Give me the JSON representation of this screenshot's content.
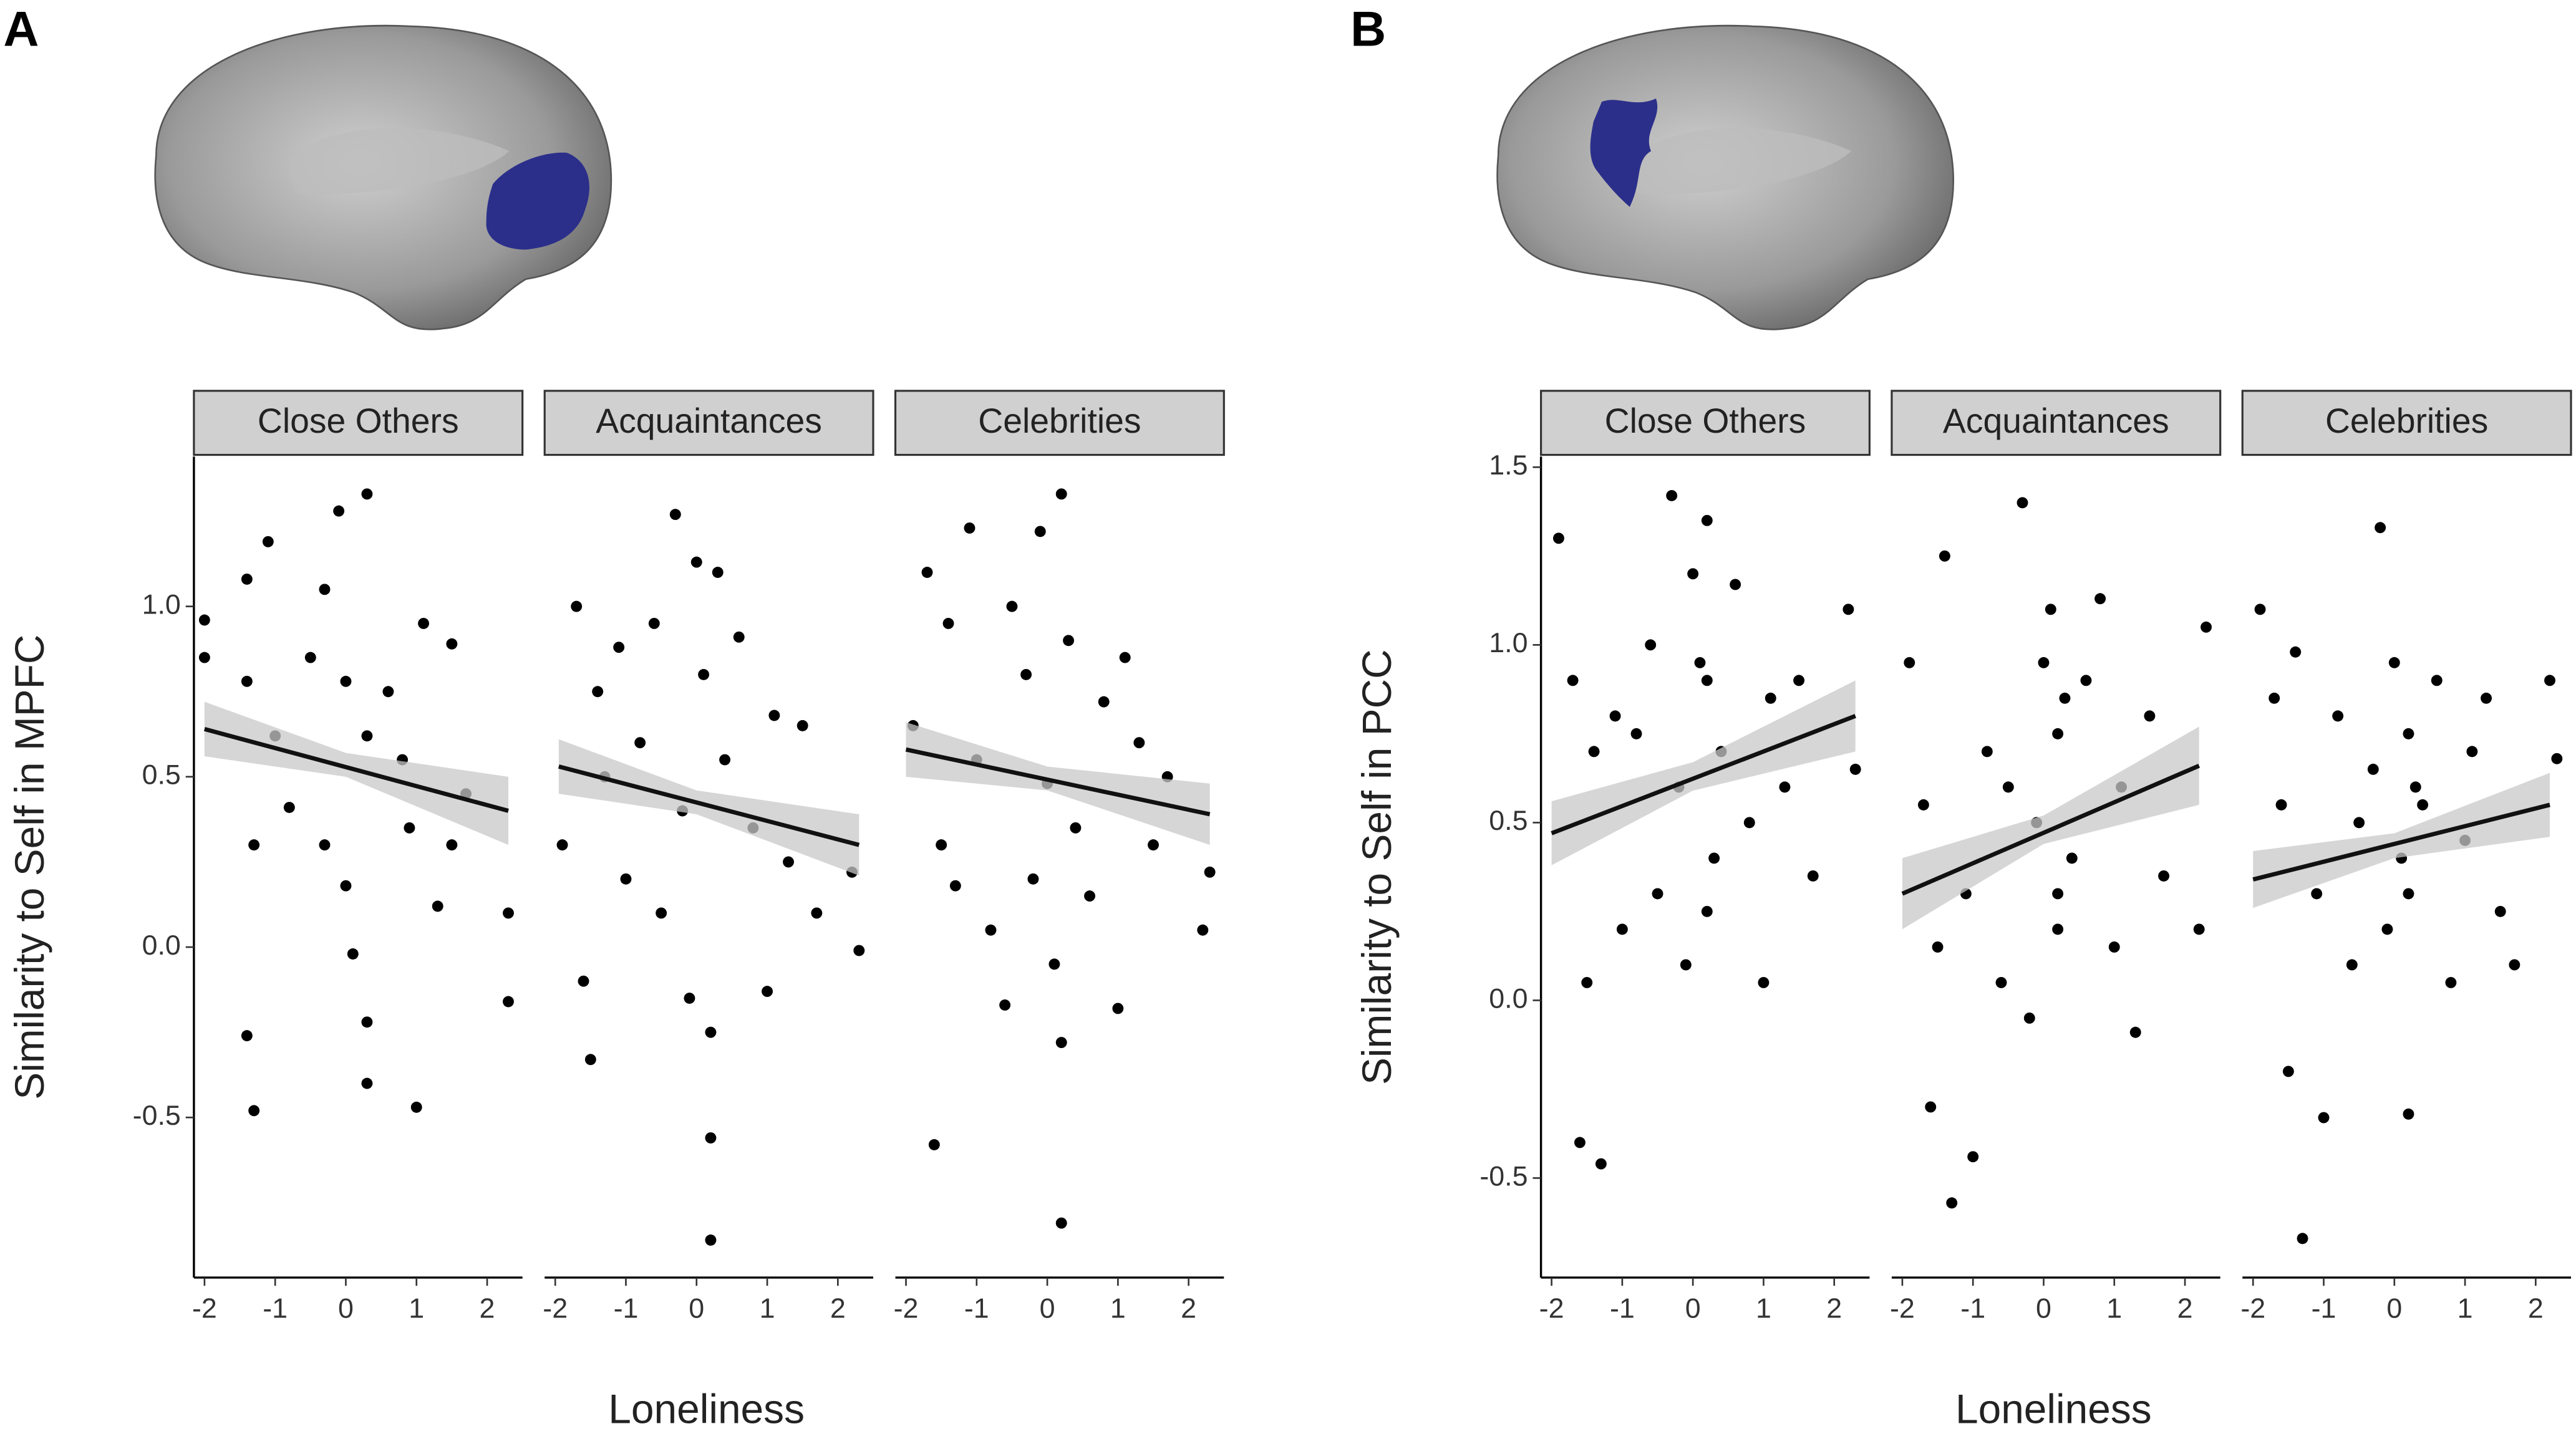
{
  "chart_data": [
    {
      "type": "scatter",
      "panel_label": "A",
      "ylabel": "Similarity to Self in MPFC",
      "xlabel": "Loneliness",
      "ylim": [
        -0.97,
        1.44
      ],
      "yticks": [
        {
          "value": -0.5,
          "label": "-0.5"
        },
        {
          "value": 0,
          "label": "0.0"
        },
        {
          "value": 0.5,
          "label": "0.5"
        },
        {
          "value": 1,
          "label": "1.0"
        }
      ],
      "xlim": [
        -2.15,
        2.5
      ],
      "xticks": [
        -2,
        -1,
        0,
        1,
        2
      ],
      "color": "#000000",
      "fit_color": "#111111",
      "band_color": "#c8c8c8",
      "facets": [
        {
          "name": "Close Others",
          "x": [
            -2,
            -2,
            -1.4,
            -1.4,
            -1.4,
            -1.3,
            -1.3,
            -1.1,
            -1,
            -0.8,
            -0.5,
            -0.3,
            -0.3,
            -0.1,
            0,
            0,
            0.1,
            0.3,
            0.3,
            0.3,
            0.3,
            0.6,
            0.8,
            0.9,
            1,
            1.1,
            1.3,
            1.5,
            1.5,
            1.7,
            2.3,
            2.3
          ],
          "y": [
            0.96,
            0.85,
            1.08,
            0.78,
            -0.26,
            0.3,
            -0.48,
            1.19,
            0.62,
            0.41,
            0.85,
            0.3,
            1.05,
            1.28,
            0.78,
            0.18,
            -0.02,
            1.33,
            0.62,
            -0.22,
            -0.4,
            0.75,
            0.55,
            0.35,
            -0.47,
            0.95,
            0.12,
            0.89,
            0.3,
            0.45,
            0.1,
            -0.16
          ],
          "fit_x": [
            -2,
            2.3
          ],
          "fit_y": [
            0.64,
            0.4
          ],
          "ci_x": [
            -2,
            0,
            2.3
          ],
          "ci_low": [
            0.56,
            0.5,
            0.3
          ],
          "ci_high": [
            0.72,
            0.57,
            0.5
          ]
        },
        {
          "name": "Acquaintances",
          "x": [
            -1.9,
            -1.7,
            -1.6,
            -1.5,
            -1.4,
            -1.3,
            -1.1,
            -1,
            -0.8,
            -0.6,
            -0.5,
            -0.3,
            -0.2,
            -0.1,
            0,
            0.1,
            0.2,
            0.2,
            0.2,
            0.3,
            0.4,
            0.6,
            0.8,
            1,
            1.1,
            1.3,
            1.5,
            1.7,
            2.2,
            2.3
          ],
          "y": [
            0.3,
            1.0,
            -0.1,
            -0.33,
            0.75,
            0.5,
            0.88,
            0.2,
            0.6,
            0.95,
            0.1,
            1.27,
            0.4,
            -0.15,
            1.13,
            0.8,
            -0.56,
            -0.86,
            -0.25,
            1.1,
            0.55,
            0.91,
            0.35,
            -0.13,
            0.68,
            0.25,
            0.65,
            0.1,
            0.22,
            -0.01
          ],
          "fit_x": [
            -1.95,
            2.3
          ],
          "fit_y": [
            0.53,
            0.3
          ],
          "ci_x": [
            -1.95,
            0,
            2.3
          ],
          "ci_low": [
            0.45,
            0.39,
            0.21
          ],
          "ci_high": [
            0.61,
            0.46,
            0.39
          ]
        },
        {
          "name": "Celebrities",
          "x": [
            -1.9,
            -1.7,
            -1.6,
            -1.5,
            -1.4,
            -1.3,
            -1.1,
            -1,
            -0.8,
            -0.6,
            -0.5,
            -0.3,
            -0.2,
            -0.1,
            0,
            0.1,
            0.2,
            0.2,
            0.2,
            0.3,
            0.4,
            0.6,
            0.8,
            1,
            1.1,
            1.3,
            1.5,
            1.7,
            2.2,
            2.3
          ],
          "y": [
            0.65,
            1.1,
            -0.58,
            0.3,
            0.95,
            0.18,
            1.23,
            0.55,
            0.05,
            -0.17,
            1.0,
            0.8,
            0.2,
            1.22,
            0.48,
            -0.05,
            -0.81,
            -0.28,
            1.33,
            0.9,
            0.35,
            0.15,
            0.72,
            -0.18,
            0.85,
            0.6,
            0.3,
            0.5,
            0.05,
            0.22
          ],
          "fit_x": [
            -2,
            2.3
          ],
          "fit_y": [
            0.58,
            0.39
          ],
          "ci_x": [
            -2,
            0,
            2.3
          ],
          "ci_low": [
            0.5,
            0.46,
            0.3
          ],
          "ci_high": [
            0.66,
            0.53,
            0.48
          ]
        }
      ]
    },
    {
      "type": "scatter",
      "panel_label": "B",
      "ylabel": "Similarity to Self in PCC",
      "xlabel": "Loneliness",
      "ylim": [
        -0.78,
        1.53
      ],
      "yticks": [
        {
          "value": -0.5,
          "label": "-0.5"
        },
        {
          "value": 0,
          "label": "0.0"
        },
        {
          "value": 0.5,
          "label": "0.5"
        },
        {
          "value": 1,
          "label": "1.0"
        },
        {
          "value": 1.5,
          "label": "1.5"
        }
      ],
      "xlim": [
        -2.15,
        2.5
      ],
      "xticks": [
        -2,
        -1,
        0,
        1,
        2
      ],
      "color": "#000000",
      "fit_color": "#111111",
      "band_color": "#c8c8c8",
      "facets": [
        {
          "name": "Close Others",
          "x": [
            -1.9,
            -1.7,
            -1.6,
            -1.5,
            -1.4,
            -1.3,
            -1.1,
            -1,
            -0.8,
            -0.6,
            -0.5,
            -0.3,
            -0.2,
            -0.1,
            0,
            0.1,
            0.2,
            0.2,
            0.2,
            0.3,
            0.4,
            0.6,
            0.8,
            1,
            1.1,
            1.3,
            1.5,
            1.7,
            2.2,
            2.3
          ],
          "y": [
            1.3,
            0.9,
            -0.4,
            0.05,
            0.7,
            -0.46,
            0.8,
            0.2,
            0.75,
            1.0,
            0.3,
            1.42,
            0.6,
            0.1,
            1.2,
            0.95,
            0.25,
            0.9,
            1.35,
            0.4,
            0.7,
            1.17,
            0.5,
            0.05,
            0.85,
            0.6,
            0.9,
            0.35,
            1.1,
            0.65
          ],
          "fit_x": [
            -2,
            2.3
          ],
          "fit_y": [
            0.47,
            0.8
          ],
          "ci_x": [
            -2,
            0,
            2.3
          ],
          "ci_low": [
            0.38,
            0.59,
            0.7
          ],
          "ci_high": [
            0.56,
            0.67,
            0.9
          ]
        },
        {
          "name": "Acquaintances",
          "x": [
            -1.9,
            -1.7,
            -1.6,
            -1.5,
            -1.4,
            -1.3,
            -1.1,
            -1,
            -0.8,
            -0.6,
            -0.5,
            -0.3,
            -0.2,
            -0.1,
            0,
            0.1,
            0.2,
            0.2,
            0.2,
            0.3,
            0.4,
            0.6,
            0.8,
            1,
            1.1,
            1.3,
            1.5,
            1.7,
            2.2,
            2.3
          ],
          "y": [
            0.95,
            0.55,
            -0.3,
            0.15,
            1.25,
            -0.57,
            0.3,
            -0.44,
            0.7,
            0.05,
            0.6,
            1.4,
            -0.05,
            0.5,
            0.95,
            1.1,
            0.2,
            0.3,
            0.75,
            0.85,
            0.4,
            0.9,
            1.13,
            0.15,
            0.6,
            -0.09,
            0.8,
            0.35,
            0.2,
            1.05
          ],
          "fit_x": [
            -2,
            2.2
          ],
          "fit_y": [
            0.3,
            0.66
          ],
          "ci_x": [
            -2,
            0,
            2.2
          ],
          "ci_low": [
            0.2,
            0.44,
            0.55
          ],
          "ci_high": [
            0.4,
            0.52,
            0.77
          ]
        },
        {
          "name": "Celebrities",
          "x": [
            -1.9,
            -1.7,
            -1.6,
            -1.5,
            -1.4,
            -1.3,
            -1.1,
            -1,
            -0.8,
            -0.6,
            -0.5,
            -0.3,
            -0.2,
            -0.1,
            0,
            0.1,
            0.2,
            0.2,
            0.2,
            0.3,
            0.4,
            0.6,
            0.8,
            1,
            1.1,
            1.3,
            1.5,
            1.7,
            2.2,
            2.3
          ],
          "y": [
            1.1,
            0.85,
            0.55,
            -0.2,
            0.98,
            -0.67,
            0.3,
            -0.33,
            0.8,
            0.1,
            0.5,
            0.65,
            1.33,
            0.2,
            0.95,
            0.4,
            -0.32,
            0.75,
            0.3,
            0.6,
            0.55,
            0.9,
            0.05,
            0.45,
            0.7,
            0.85,
            0.25,
            0.1,
            0.9,
            0.68
          ],
          "fit_x": [
            -2,
            2.2
          ],
          "fit_y": [
            0.34,
            0.55
          ],
          "ci_x": [
            -2,
            0,
            2.2
          ],
          "ci_low": [
            0.26,
            0.4,
            0.46
          ],
          "ci_high": [
            0.42,
            0.47,
            0.64
          ]
        }
      ]
    }
  ]
}
